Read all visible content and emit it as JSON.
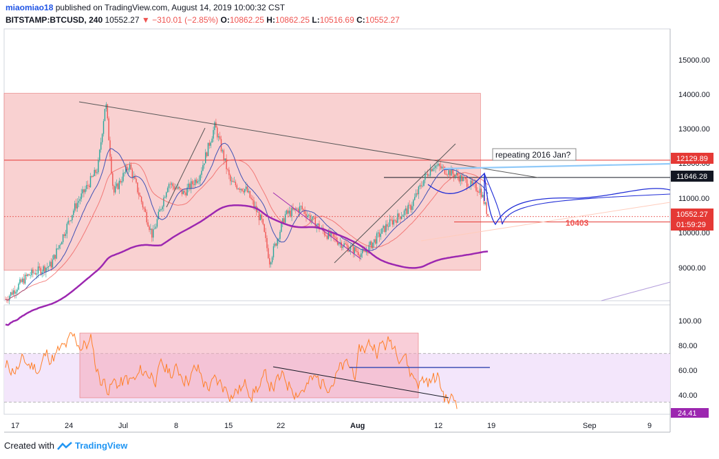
{
  "header": {
    "author": "miaomiao18",
    "published_text": "published on TradingView.com, August 14, 2019 10:00:32 CST",
    "symbol": "BITSTAMP:BTCUSD, 240",
    "last": "10552.27",
    "change": "−310.01 (−2.85%)",
    "open_label": "O:",
    "open": "10862.25",
    "high_label": "H:",
    "high": "10862.25",
    "low_label": "L:",
    "low": "10516.69",
    "close_label": "C:",
    "close": "10552.27"
  },
  "annotations": {
    "callout": "repeating 2016 Jan?",
    "target_label": "10403"
  },
  "price_axis": {
    "ticks": [
      "15000.00",
      "14000.00",
      "13000.00",
      "12000.00",
      "11000.00",
      "10000.00",
      "9000.00"
    ],
    "tags": [
      "12129.89",
      "11646.28",
      "10552.27",
      "01:59:29"
    ]
  },
  "rsi_axis": {
    "ticks": [
      "100.00",
      "80.00",
      "60.00",
      "40.00"
    ],
    "tag": "24.41"
  },
  "time_axis": [
    "17",
    "24",
    "Jul",
    "8",
    "15",
    "22",
    "Aug",
    "12",
    "19",
    "Sep",
    "9"
  ],
  "footer": {
    "created": "Created with",
    "brand": "TradingView"
  },
  "colors": {
    "up": "#26a69a",
    "down": "#ef5350",
    "ma_purple": "#9c27b0",
    "ma_blue": "#3f51b5",
    "ma_red": "#ef5350",
    "rsi": "#ff7f27",
    "zone": "#f8c9c9",
    "rsi_band": "#f3e6fb",
    "path": "#1e2bd6"
  },
  "chart_data": {
    "type": "candlestick",
    "timeframe": "240",
    "ylim": [
      8200,
      15800
    ],
    "price_path": [
      [
        "2019-06-13",
        8200
      ],
      [
        "2019-06-16",
        8900
      ],
      [
        "2019-06-19",
        9200
      ],
      [
        "2019-06-22",
        10800
      ],
      [
        "2019-06-25",
        11900
      ],
      [
        "2019-06-26",
        13800
      ],
      [
        "2019-06-27",
        11200
      ],
      [
        "2019-06-29",
        12000
      ],
      [
        "2019-07-01",
        10700
      ],
      [
        "2019-07-02",
        10000
      ],
      [
        "2019-07-04",
        11500
      ],
      [
        "2019-07-06",
        11200
      ],
      [
        "2019-07-08",
        11700
      ],
      [
        "2019-07-10",
        13100
      ],
      [
        "2019-07-12",
        11500
      ],
      [
        "2019-07-14",
        11300
      ],
      [
        "2019-07-16",
        10400
      ],
      [
        "2019-07-17",
        9300
      ],
      [
        "2019-07-19",
        10600
      ],
      [
        "2019-07-21",
        10800
      ],
      [
        "2019-07-24",
        10100
      ],
      [
        "2019-07-27",
        9700
      ],
      [
        "2019-07-29",
        9500
      ],
      [
        "2019-08-01",
        10300
      ],
      [
        "2019-08-04",
        10800
      ],
      [
        "2019-08-06",
        11700
      ],
      [
        "2019-08-07",
        12000
      ],
      [
        "2019-08-10",
        11700
      ],
      [
        "2019-08-12",
        11400
      ],
      [
        "2019-08-13",
        11300
      ],
      [
        "2019-08-14",
        10552
      ]
    ],
    "zones": [
      {
        "x0": "2019-06-13",
        "x1": "2019-08-13",
        "y0": 9050,
        "y1": 14000
      }
    ],
    "horizontal_levels": [
      12129.89,
      11646.28,
      10552.27,
      10403
    ],
    "rsi": {
      "ylim": [
        20,
        110
      ],
      "levels": [
        70,
        30
      ],
      "last": 24.41
    }
  }
}
